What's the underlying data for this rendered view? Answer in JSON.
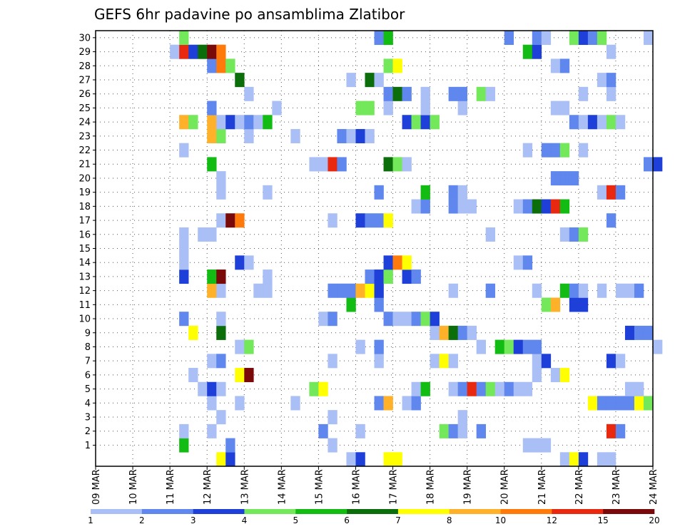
{
  "chart_data": {
    "type": "heatmap",
    "title": "GEFS 6hr padavine po ansamblima Zlatibor",
    "xlabel": "",
    "ylabel": "",
    "x_ticks": [
      "09 MAR",
      "10 MAR",
      "11 MAR",
      "12 MAR",
      "13 MAR",
      "14 MAR",
      "15 MAR",
      "16 MAR",
      "17 MAR",
      "18 MAR",
      "19 MAR",
      "20 MAR",
      "21 MAR",
      "22 MAR",
      "23 MAR",
      "24 MAR"
    ],
    "y_ticks": [
      1,
      2,
      3,
      4,
      5,
      6,
      7,
      8,
      9,
      10,
      11,
      12,
      13,
      14,
      15,
      16,
      17,
      18,
      19,
      20,
      21,
      22,
      23,
      24,
      25,
      26,
      27,
      28,
      29,
      30
    ],
    "time_steps_per_day": 4,
    "members": 30,
    "grid": true,
    "legend_placement": "bottom",
    "color_scale": {
      "labels": [
        "1",
        "2",
        "3",
        "4",
        "5",
        "6",
        "7",
        "8",
        "10",
        "12",
        "15",
        "20"
      ],
      "colors": [
        "#aabff5",
        "#5f87ee",
        "#1f40d8",
        "#72e85a",
        "#13bc13",
        "#0b6e0b",
        "#ffff00",
        "#ffb12a",
        "#ff7a0a",
        "#e8280f",
        "#7a0a0a"
      ]
    },
    "cells": {
      "30": [
        [
          9,
          3
        ],
        [
          30,
          1
        ],
        [
          31,
          4
        ],
        [
          44,
          1
        ],
        [
          47,
          1
        ],
        [
          48,
          0
        ],
        [
          51,
          3
        ],
        [
          52,
          2
        ],
        [
          53,
          1
        ],
        [
          54,
          3
        ],
        [
          59,
          0
        ]
      ],
      "29": [
        [
          8,
          0
        ],
        [
          9,
          9
        ],
        [
          10,
          2
        ],
        [
          11,
          5
        ],
        [
          12,
          10
        ],
        [
          13,
          8
        ],
        [
          46,
          4
        ],
        [
          47,
          2
        ],
        [
          55,
          0
        ]
      ],
      "28": [
        [
          12,
          1
        ],
        [
          13,
          8
        ],
        [
          14,
          3
        ],
        [
          31,
          3
        ],
        [
          32,
          6
        ],
        [
          49,
          0
        ],
        [
          50,
          1
        ]
      ],
      "27": [
        [
          15,
          5
        ],
        [
          27,
          0
        ],
        [
          29,
          5
        ],
        [
          30,
          0
        ],
        [
          54,
          0
        ],
        [
          55,
          1
        ]
      ],
      "26": [
        [
          16,
          0
        ],
        [
          31,
          1
        ],
        [
          32,
          5
        ],
        [
          33,
          1
        ],
        [
          35,
          0
        ],
        [
          38,
          1
        ],
        [
          39,
          1
        ],
        [
          41,
          3
        ],
        [
          42,
          0
        ],
        [
          52,
          0
        ],
        [
          55,
          0
        ]
      ],
      "25": [
        [
          12,
          1
        ],
        [
          19,
          0
        ],
        [
          28,
          3
        ],
        [
          29,
          3
        ],
        [
          31,
          0
        ],
        [
          35,
          0
        ],
        [
          39,
          0
        ],
        [
          49,
          0
        ],
        [
          50,
          0
        ]
      ],
      "24": [
        [
          9,
          7
        ],
        [
          10,
          3
        ],
        [
          12,
          7
        ],
        [
          13,
          0
        ],
        [
          14,
          2
        ],
        [
          15,
          0
        ],
        [
          16,
          1
        ],
        [
          17,
          0
        ],
        [
          18,
          4
        ],
        [
          33,
          2
        ],
        [
          34,
          3
        ],
        [
          35,
          2
        ],
        [
          36,
          3
        ],
        [
          51,
          1
        ],
        [
          52,
          0
        ],
        [
          53,
          2
        ],
        [
          54,
          0
        ],
        [
          55,
          3
        ],
        [
          56,
          0
        ]
      ],
      "23": [
        [
          12,
          7
        ],
        [
          13,
          3
        ],
        [
          16,
          0
        ],
        [
          21,
          0
        ],
        [
          26,
          1
        ],
        [
          27,
          0
        ],
        [
          28,
          2
        ],
        [
          29,
          0
        ]
      ],
      "22": [
        [
          9,
          0
        ],
        [
          46,
          0
        ],
        [
          48,
          1
        ],
        [
          49,
          1
        ],
        [
          50,
          3
        ],
        [
          52,
          0
        ]
      ],
      "21": [
        [
          12,
          4
        ],
        [
          23,
          0
        ],
        [
          24,
          0
        ],
        [
          25,
          9
        ],
        [
          26,
          1
        ],
        [
          31,
          5
        ],
        [
          32,
          3
        ],
        [
          33,
          0
        ],
        [
          59,
          1
        ],
        [
          60,
          2
        ]
      ],
      "20": [
        [
          13,
          0
        ],
        [
          49,
          1
        ],
        [
          50,
          1
        ],
        [
          51,
          1
        ]
      ],
      "19": [
        [
          13,
          0
        ],
        [
          18,
          0
        ],
        [
          30,
          1
        ],
        [
          35,
          4
        ],
        [
          38,
          1
        ],
        [
          39,
          0
        ],
        [
          54,
          0
        ],
        [
          55,
          9
        ],
        [
          56,
          1
        ]
      ],
      "18": [
        [
          34,
          0
        ],
        [
          35,
          1
        ],
        [
          38,
          1
        ],
        [
          39,
          0
        ],
        [
          40,
          0
        ],
        [
          45,
          0
        ],
        [
          46,
          1
        ],
        [
          47,
          5
        ],
        [
          48,
          2
        ],
        [
          49,
          9
        ],
        [
          50,
          4
        ]
      ],
      "17": [
        [
          13,
          0
        ],
        [
          14,
          10
        ],
        [
          15,
          8
        ],
        [
          25,
          0
        ],
        [
          28,
          2
        ],
        [
          29,
          1
        ],
        [
          30,
          1
        ],
        [
          31,
          6
        ],
        [
          55,
          1
        ]
      ],
      "16": [
        [
          9,
          0
        ],
        [
          11,
          0
        ],
        [
          12,
          0
        ],
        [
          42,
          0
        ],
        [
          50,
          0
        ],
        [
          51,
          1
        ],
        [
          52,
          3
        ]
      ],
      "15": [
        [
          9,
          0
        ]
      ],
      "14": [
        [
          9,
          0
        ],
        [
          15,
          2
        ],
        [
          16,
          0
        ],
        [
          31,
          2
        ],
        [
          32,
          8
        ],
        [
          33,
          6
        ],
        [
          45,
          0
        ],
        [
          46,
          1
        ]
      ],
      "13": [
        [
          9,
          2
        ],
        [
          12,
          4
        ],
        [
          13,
          10
        ],
        [
          18,
          0
        ],
        [
          29,
          1
        ],
        [
          30,
          2
        ],
        [
          31,
          3
        ],
        [
          33,
          2
        ],
        [
          34,
          1
        ]
      ],
      "12": [
        [
          12,
          7
        ],
        [
          13,
          0
        ],
        [
          17,
          0
        ],
        [
          18,
          0
        ],
        [
          25,
          1
        ],
        [
          26,
          1
        ],
        [
          27,
          1
        ],
        [
          28,
          7
        ],
        [
          29,
          6
        ],
        [
          30,
          2
        ],
        [
          38,
          0
        ],
        [
          42,
          1
        ],
        [
          47,
          0
        ],
        [
          50,
          4
        ],
        [
          51,
          1
        ],
        [
          52,
          0
        ],
        [
          54,
          0
        ],
        [
          56,
          0
        ],
        [
          57,
          0
        ],
        [
          58,
          1
        ]
      ],
      "11": [
        [
          27,
          4
        ],
        [
          30,
          1
        ],
        [
          48,
          3
        ],
        [
          49,
          7
        ],
        [
          51,
          2
        ],
        [
          52,
          2
        ]
      ],
      "10": [
        [
          9,
          1
        ],
        [
          13,
          0
        ],
        [
          24,
          0
        ],
        [
          25,
          1
        ],
        [
          31,
          1
        ],
        [
          32,
          0
        ],
        [
          33,
          0
        ],
        [
          34,
          1
        ],
        [
          35,
          3
        ],
        [
          36,
          2
        ]
      ],
      "9": [
        [
          10,
          6
        ],
        [
          13,
          5
        ],
        [
          36,
          0
        ],
        [
          37,
          7
        ],
        [
          38,
          5
        ],
        [
          39,
          1
        ],
        [
          40,
          0
        ],
        [
          57,
          2
        ],
        [
          58,
          1
        ],
        [
          59,
          1
        ]
      ],
      "8": [
        [
          15,
          0
        ],
        [
          16,
          3
        ],
        [
          28,
          0
        ],
        [
          30,
          1
        ],
        [
          41,
          0
        ],
        [
          43,
          4
        ],
        [
          44,
          3
        ],
        [
          45,
          2
        ],
        [
          46,
          1
        ],
        [
          47,
          1
        ],
        [
          60,
          0
        ]
      ],
      "7": [
        [
          12,
          0
        ],
        [
          13,
          1
        ],
        [
          25,
          0
        ],
        [
          30,
          0
        ],
        [
          36,
          0
        ],
        [
          37,
          6
        ],
        [
          38,
          0
        ],
        [
          47,
          0
        ],
        [
          48,
          2
        ],
        [
          55,
          2
        ],
        [
          56,
          0
        ]
      ],
      "6": [
        [
          10,
          0
        ],
        [
          15,
          6
        ],
        [
          16,
          10
        ],
        [
          47,
          0
        ],
        [
          49,
          0
        ],
        [
          50,
          6
        ]
      ],
      "5": [
        [
          11,
          0
        ],
        [
          12,
          2
        ],
        [
          13,
          0
        ],
        [
          23,
          3
        ],
        [
          24,
          6
        ],
        [
          34,
          0
        ],
        [
          35,
          4
        ],
        [
          38,
          0
        ],
        [
          39,
          1
        ],
        [
          40,
          9
        ],
        [
          41,
          1
        ],
        [
          42,
          3
        ],
        [
          43,
          0
        ],
        [
          44,
          1
        ],
        [
          45,
          0
        ],
        [
          46,
          0
        ],
        [
          57,
          0
        ],
        [
          58,
          0
        ]
      ],
      "4": [
        [
          12,
          0
        ],
        [
          15,
          0
        ],
        [
          21,
          0
        ],
        [
          30,
          1
        ],
        [
          31,
          7
        ],
        [
          33,
          0
        ],
        [
          34,
          1
        ],
        [
          53,
          6
        ],
        [
          54,
          1
        ],
        [
          55,
          1
        ],
        [
          56,
          1
        ],
        [
          57,
          1
        ],
        [
          58,
          6
        ],
        [
          59,
          3
        ]
      ],
      "3": [
        [
          13,
          0
        ],
        [
          25,
          0
        ],
        [
          39,
          0
        ]
      ],
      "2": [
        [
          9,
          0
        ],
        [
          12,
          0
        ],
        [
          24,
          1
        ],
        [
          28,
          0
        ],
        [
          37,
          3
        ],
        [
          38,
          1
        ],
        [
          39,
          0
        ],
        [
          41,
          1
        ],
        [
          55,
          9
        ],
        [
          56,
          1
        ]
      ],
      "1": [
        [
          9,
          4
        ],
        [
          14,
          1
        ],
        [
          25,
          0
        ],
        [
          46,
          0
        ],
        [
          47,
          0
        ],
        [
          48,
          0
        ]
      ],
      "0": [
        [
          13,
          6
        ],
        [
          14,
          2
        ],
        [
          27,
          0
        ],
        [
          28,
          2
        ],
        [
          31,
          6
        ],
        [
          32,
          6
        ],
        [
          50,
          0
        ],
        [
          51,
          6
        ],
        [
          52,
          2
        ],
        [
          54,
          0
        ],
        [
          55,
          0
        ]
      ]
    }
  }
}
